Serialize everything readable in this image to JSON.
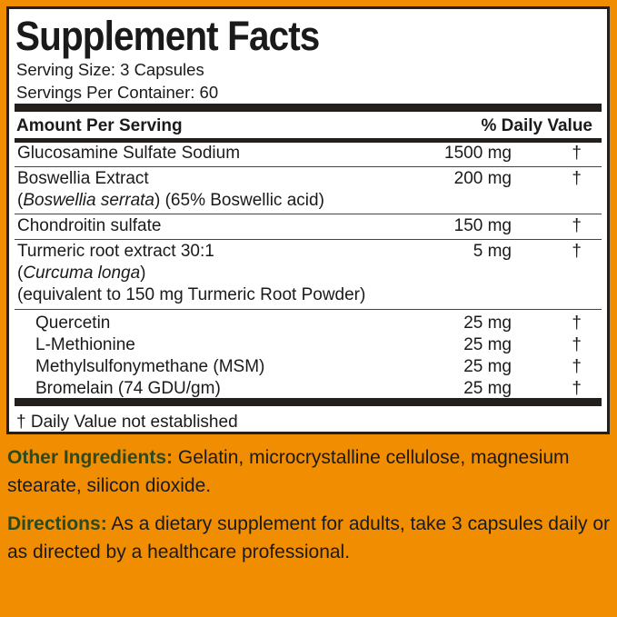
{
  "title": "Supplement Facts",
  "serving_size": "Serving Size: 3 Capsules",
  "servings_per_container": "Servings Per Container: 60",
  "header": {
    "amount": "Amount Per Serving",
    "dv": "% Daily Value"
  },
  "rows": [
    {
      "name": "Glucosamine Sulfate Sodium",
      "amount": "1500 mg",
      "dv": "†"
    },
    {
      "name": "Boswellia Extract",
      "name_italic": "Boswellia serrata",
      "name_extra": " (65% Boswellic acid)",
      "amount": "200 mg",
      "dv": "†"
    },
    {
      "name": "Chondroitin sulfate",
      "amount": "150 mg",
      "dv": "†"
    },
    {
      "name": "Turmeric root extract 30:1",
      "name_italic": "Curcuma longa",
      "name_extra": "(equivalent to 150 mg Turmeric Root Powder)",
      "amount": "5 mg",
      "dv": "†"
    }
  ],
  "sub_rows": [
    {
      "name": "Quercetin",
      "amount": "25 mg",
      "dv": "†"
    },
    {
      "name": "L-Methionine",
      "amount": "25 mg",
      "dv": "†"
    },
    {
      "name": "Methylsulfonymethane (MSM)",
      "amount": "25 mg",
      "dv": "†"
    },
    {
      "name": "Bromelain (74 GDU/gm)",
      "amount": "25 mg",
      "dv": "†"
    }
  ],
  "footnote": "† Daily Value not established",
  "other_ingredients": {
    "label": "Other Ingredients:",
    "text": " Gelatin, microcrystalline cellulose, magnesium stearate, silicon dioxide."
  },
  "directions": {
    "label": "Directions:",
    "text": " As a dietary supplement for adults, take 3 capsules daily or as directed by a healthcare professional."
  },
  "colors": {
    "background": "#f18d00",
    "label_accent": "#2c4a1f",
    "border": "#231f1c"
  }
}
